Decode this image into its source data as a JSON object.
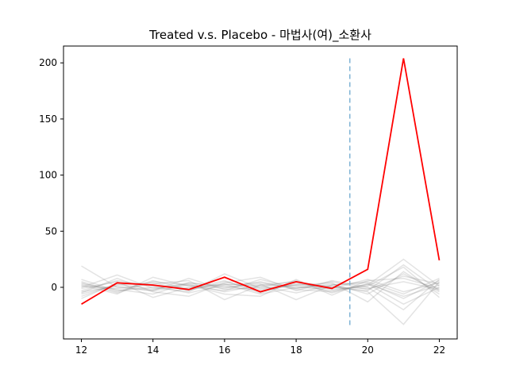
{
  "chart_data": {
    "type": "line",
    "title": "Treated v.s. Placebo - 마법사(여)_소환사",
    "xlabel": "",
    "ylabel": "",
    "xlim": [
      11.5,
      22.5
    ],
    "ylim": [
      -46,
      215
    ],
    "x_ticks": [
      12,
      14,
      16,
      18,
      20,
      22
    ],
    "y_ticks": [
      0,
      50,
      100,
      150,
      200
    ],
    "grid": false,
    "legend": "none",
    "vline": {
      "x": 19.5,
      "color": "#7fb3d5",
      "style": "dashed"
    },
    "x": [
      12,
      13,
      14,
      15,
      16,
      17,
      18,
      19,
      20,
      21,
      22
    ],
    "treated": {
      "color": "#ff0000",
      "values": [
        -15,
        4,
        2,
        -2,
        9,
        -4,
        5,
        -1,
        16,
        204,
        24
      ]
    },
    "placebo": {
      "color": "#808080",
      "series": [
        [
          -8,
          3,
          -2,
          4,
          1,
          -3,
          2,
          0,
          -1,
          5,
          -2
        ],
        [
          5,
          -4,
          6,
          -2,
          3,
          1,
          -5,
          2,
          4,
          -10,
          6
        ],
        [
          -3,
          6,
          1,
          -5,
          2,
          4,
          -1,
          3,
          -6,
          12,
          -4
        ],
        [
          19,
          0,
          -3,
          2,
          -1,
          5,
          -2,
          -4,
          3,
          -8,
          2
        ],
        [
          0,
          11,
          -1,
          3,
          -4,
          2,
          1,
          -3,
          2,
          25,
          1
        ],
        [
          -6,
          2,
          4,
          -3,
          5,
          -2,
          3,
          1,
          -4,
          -33,
          5
        ],
        [
          3,
          -2,
          -6,
          4,
          0,
          3,
          -11,
          2,
          5,
          -6,
          8
        ],
        [
          -10,
          4,
          2,
          -1,
          6,
          -5,
          4,
          -2,
          1,
          18,
          -9
        ],
        [
          2,
          -6,
          9,
          1,
          -3,
          7,
          -1,
          5,
          -2,
          10,
          3
        ],
        [
          -4,
          1,
          -3,
          8,
          -2,
          0,
          6,
          -5,
          3,
          -15,
          0
        ],
        [
          7,
          -3,
          0,
          -4,
          12,
          -1,
          2,
          4,
          -13,
          14,
          -6
        ],
        [
          -1,
          5,
          -9,
          0,
          3,
          -6,
          0,
          -1,
          7,
          -4,
          4
        ],
        [
          1,
          -1,
          3,
          6,
          -11,
          2,
          5,
          0,
          -3,
          20,
          -3
        ],
        [
          -5,
          8,
          -4,
          -8,
          4,
          9,
          -3,
          6,
          0,
          -20,
          7
        ],
        [
          4,
          -5,
          5,
          2,
          -6,
          -8,
          7,
          -7,
          6,
          8,
          -1
        ]
      ]
    }
  }
}
